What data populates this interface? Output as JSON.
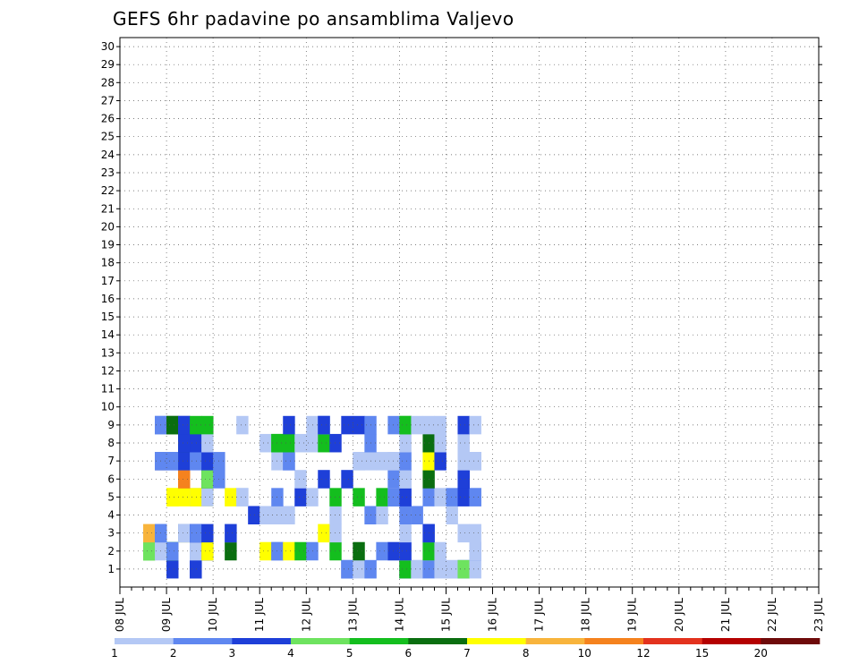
{
  "chart_data": {
    "type": "heatmap",
    "title": "GEFS 6hr padavine po ansamblima Valjevo",
    "xlabel": "",
    "ylabel": "",
    "y_ticks": [
      1,
      2,
      3,
      4,
      5,
      6,
      7,
      8,
      9,
      10,
      11,
      12,
      13,
      14,
      15,
      16,
      17,
      18,
      19,
      20,
      21,
      22,
      23,
      24,
      25,
      26,
      27,
      28,
      29,
      30
    ],
    "x_tick_labels": [
      "08 JUL",
      "09 JUL",
      "10 JUL",
      "11 JUL",
      "12 JUL",
      "13 JUL",
      "14 JUL",
      "15 JUL",
      "16 JUL",
      "17 JUL",
      "18 JUL",
      "19 JUL",
      "20 JUL",
      "21 JUL",
      "22 JUL",
      "23 JUL"
    ],
    "x_step_hours": 6,
    "grid": true,
    "legend_position": "bottom",
    "legend_labels": [
      "1",
      "2",
      "3",
      "4",
      "5",
      "6",
      "7",
      "8",
      "10",
      "12",
      "15",
      "20"
    ],
    "color_bins": [
      "#b4c8f5",
      "#5f87f0",
      "#1e3fd8",
      "#6ee35f",
      "#14be1e",
      "#0a6e10",
      "#ffff00",
      "#f8b43c",
      "#f5821e",
      "#e3321e",
      "#b40000",
      "#6e0a0a"
    ],
    "cells": [
      [
        1,
        4,
        0
      ],
      [
        1,
        4,
        2
      ],
      [
        1,
        6,
        0
      ],
      [
        1,
        19,
        2
      ],
      [
        1,
        19,
        1
      ],
      [
        1,
        20,
        0
      ],
      [
        1,
        21,
        0
      ],
      [
        1,
        21,
        1
      ],
      [
        1,
        24,
        1
      ],
      [
        1,
        24,
        3
      ],
      [
        1,
        24,
        3
      ],
      [
        1,
        24,
        3
      ],
      [
        1,
        24,
        5
      ],
      [
        1,
        24,
        0
      ],
      [
        1,
        24,
        2
      ],
      [
        1,
        24,
        4
      ],
      [
        1,
        25,
        0
      ],
      [
        1,
        25,
        0
      ],
      [
        1,
        25,
        0
      ],
      [
        1,
        26,
        1
      ],
      [
        1,
        27,
        0
      ],
      [
        1,
        28,
        0
      ],
      [
        1,
        28,
        0
      ],
      [
        1,
        29,
        0
      ],
      [
        1,
        29,
        1
      ],
      [
        1,
        29,
        1
      ],
      [
        1,
        29,
        3
      ],
      [
        1,
        30,
        0
      ],
      [
        1,
        6,
        2
      ],
      [
        1,
        6,
        2
      ],
      [
        2,
        2,
        4
      ],
      [
        2,
        2,
        3
      ],
      [
        2,
        2,
        3
      ],
      [
        2,
        3,
        0
      ],
      [
        2,
        4,
        1
      ],
      [
        2,
        4,
        1
      ],
      [
        2,
        4,
        0
      ],
      [
        2,
        4,
        4
      ],
      [
        2,
        4,
        1
      ],
      [
        2,
        6,
        1
      ],
      [
        2,
        6,
        0
      ],
      [
        2,
        7,
        0
      ],
      [
        2,
        7,
        6
      ],
      [
        2,
        7,
        2
      ],
      [
        2,
        7,
        6
      ],
      [
        2,
        9,
        5
      ],
      [
        2,
        12,
        6
      ],
      [
        2,
        13,
        1
      ],
      [
        2,
        13,
        1
      ],
      [
        2,
        14,
        6
      ],
      [
        2,
        15,
        4
      ],
      [
        2,
        16,
        1
      ],
      [
        2,
        18,
        4
      ],
      [
        2,
        20,
        5
      ],
      [
        2,
        22,
        1
      ],
      [
        2,
        23,
        0
      ],
      [
        2,
        23,
        2
      ],
      [
        2,
        24,
        0
      ],
      [
        2,
        24,
        2
      ],
      [
        2,
        26,
        0
      ],
      [
        2,
        26,
        4
      ],
      [
        2,
        27,
        0
      ],
      [
        2,
        30,
        1
      ],
      [
        2,
        30,
        0
      ],
      [
        3,
        2,
        7
      ],
      [
        3,
        3,
        0
      ],
      [
        3,
        3,
        1
      ],
      [
        3,
        3,
        1
      ],
      [
        3,
        5,
        6
      ],
      [
        3,
        5,
        1
      ],
      [
        3,
        5,
        0
      ],
      [
        3,
        6,
        2
      ],
      [
        3,
        6,
        2
      ],
      [
        3,
        6,
        1
      ],
      [
        3,
        7,
        2
      ],
      [
        3,
        9,
        0
      ],
      [
        3,
        9,
        2
      ],
      [
        3,
        17,
        6
      ],
      [
        3,
        18,
        0
      ],
      [
        3,
        24,
        0
      ],
      [
        3,
        26,
        1
      ],
      [
        3,
        26,
        2
      ],
      [
        3,
        29,
        0
      ],
      [
        3,
        30,
        0
      ],
      [
        4,
        11,
        2
      ],
      [
        4,
        12,
        0
      ],
      [
        4,
        13,
        0
      ],
      [
        4,
        14,
        0
      ],
      [
        4,
        18,
        0
      ],
      [
        4,
        21,
        1
      ],
      [
        4,
        22,
        0
      ],
      [
        4,
        24,
        0
      ],
      [
        4,
        24,
        1
      ],
      [
        4,
        25,
        0
      ],
      [
        4,
        25,
        1
      ],
      [
        4,
        28,
        0
      ],
      [
        5,
        4,
        6
      ],
      [
        5,
        4,
        6
      ],
      [
        5,
        5,
        6
      ],
      [
        5,
        6,
        0
      ],
      [
        5,
        6,
        6
      ],
      [
        5,
        7,
        6
      ],
      [
        5,
        7,
        0
      ],
      [
        5,
        9,
        6
      ],
      [
        5,
        10,
        0
      ],
      [
        5,
        10,
        0
      ],
      [
        5,
        13,
        1
      ],
      [
        5,
        15,
        2
      ],
      [
        5,
        16,
        0
      ],
      [
        5,
        18,
        4
      ],
      [
        5,
        20,
        4
      ],
      [
        5,
        22,
        4
      ],
      [
        5,
        23,
        0
      ],
      [
        5,
        23,
        1
      ],
      [
        5,
        23,
        1
      ],
      [
        5,
        24,
        1
      ],
      [
        5,
        24,
        2
      ],
      [
        5,
        26,
        1
      ],
      [
        5,
        27,
        0
      ],
      [
        5,
        28,
        1
      ],
      [
        5,
        29,
        0
      ],
      [
        5,
        29,
        2
      ],
      [
        5,
        30,
        0
      ],
      [
        5,
        30,
        1
      ],
      [
        6,
        5,
        8
      ],
      [
        6,
        5,
        8
      ],
      [
        6,
        7,
        5
      ],
      [
        6,
        7,
        3
      ],
      [
        6,
        8,
        1
      ],
      [
        6,
        15,
        0
      ],
      [
        6,
        17,
        2
      ],
      [
        6,
        19,
        2
      ],
      [
        6,
        23,
        0
      ],
      [
        6,
        23,
        1
      ],
      [
        6,
        24,
        0
      ],
      [
        6,
        24,
        0
      ],
      [
        6,
        26,
        5
      ],
      [
        6,
        29,
        2
      ],
      [
        6,
        29,
        2
      ],
      [
        7,
        3,
        7
      ],
      [
        7,
        3,
        1
      ],
      [
        7,
        3,
        1
      ],
      [
        7,
        4,
        1
      ],
      [
        7,
        4,
        1
      ],
      [
        7,
        5,
        2
      ],
      [
        7,
        6,
        1
      ],
      [
        7,
        7,
        2
      ],
      [
        7,
        8,
        1
      ],
      [
        7,
        13,
        0
      ],
      [
        7,
        14,
        1
      ],
      [
        7,
        14,
        1
      ],
      [
        7,
        20,
        0
      ],
      [
        7,
        20,
        0
      ],
      [
        7,
        21,
        0
      ],
      [
        7,
        22,
        0
      ],
      [
        7,
        23,
        0
      ],
      [
        7,
        23,
        0
      ],
      [
        7,
        24,
        1
      ],
      [
        7,
        26,
        6
      ],
      [
        7,
        27,
        2
      ],
      [
        7,
        29,
        0
      ],
      [
        7,
        30,
        0
      ],
      [
        7,
        30,
        0
      ],
      [
        7,
        30,
        0
      ],
      [
        8,
        5,
        5
      ],
      [
        8,
        5,
        2
      ],
      [
        8,
        6,
        2
      ],
      [
        8,
        7,
        0
      ],
      [
        8,
        12,
        0
      ],
      [
        8,
        13,
        4
      ],
      [
        8,
        13,
        4
      ],
      [
        8,
        14,
        4
      ],
      [
        8,
        15,
        0
      ],
      [
        8,
        16,
        0
      ],
      [
        8,
        17,
        4
      ],
      [
        8,
        18,
        2
      ],
      [
        8,
        21,
        1
      ],
      [
        8,
        24,
        0
      ],
      [
        8,
        26,
        5
      ],
      [
        8,
        27,
        0
      ],
      [
        8,
        29,
        0
      ],
      [
        9,
        3,
        1
      ],
      [
        9,
        3,
        1
      ],
      [
        9,
        4,
        5
      ],
      [
        9,
        4,
        5
      ],
      [
        9,
        5,
        2
      ],
      [
        9,
        5,
        2
      ],
      [
        9,
        6,
        4
      ],
      [
        9,
        7,
        4
      ],
      [
        9,
        10,
        0
      ],
      [
        9,
        14,
        2
      ],
      [
        9,
        16,
        0
      ],
      [
        9,
        17,
        1
      ],
      [
        9,
        17,
        1
      ],
      [
        9,
        17,
        2
      ],
      [
        9,
        19,
        2
      ],
      [
        9,
        20,
        2
      ],
      [
        9,
        21,
        1
      ],
      [
        9,
        23,
        1
      ],
      [
        9,
        24,
        4
      ],
      [
        9,
        24,
        4
      ],
      [
        9,
        25,
        0
      ],
      [
        9,
        26,
        0
      ],
      [
        9,
        27,
        0
      ],
      [
        9,
        29,
        2
      ],
      [
        9,
        30,
        0
      ]
    ]
  }
}
